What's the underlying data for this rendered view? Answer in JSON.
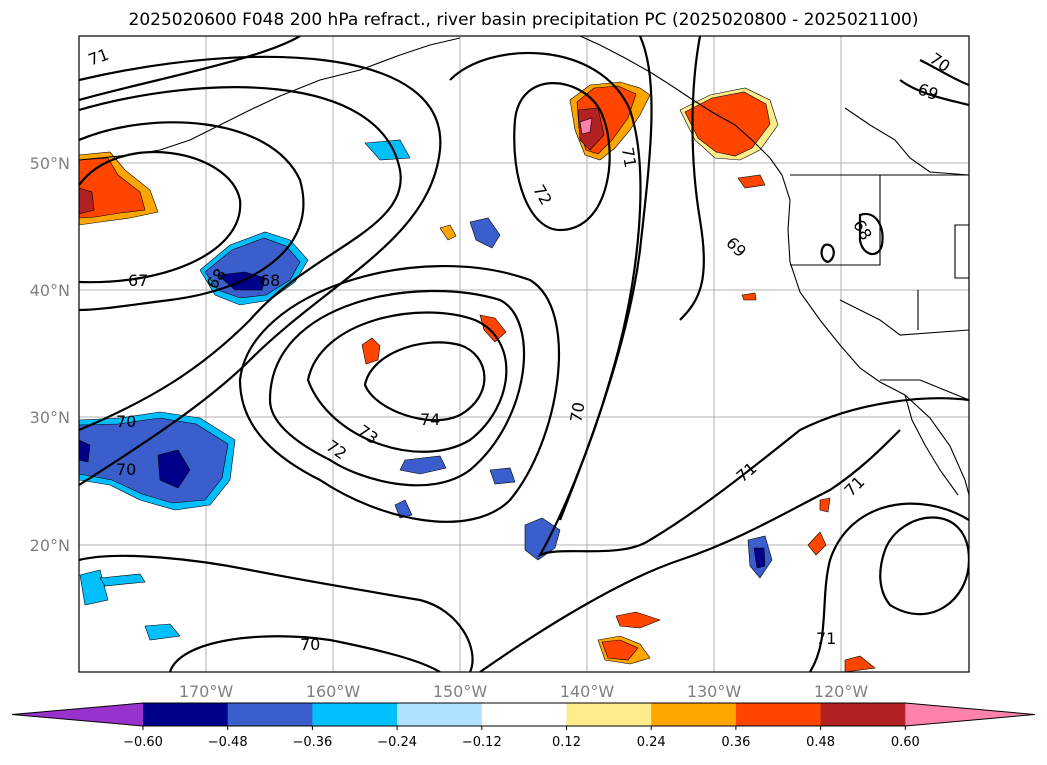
{
  "title": "2025020600 F048 200 hPa refract., river basin precipitation PC (2025020800 - 2025021100)",
  "map": {
    "lat_labels": [
      "50°N",
      "40°N",
      "30°N",
      "20°N"
    ],
    "lon_labels": [
      "170°W",
      "160°W",
      "150°W",
      "140°W",
      "130°W",
      "120°W"
    ],
    "contour_labels": [
      "71",
      "70",
      "69",
      "68",
      "67",
      "68",
      "68",
      "72",
      "71",
      "69",
      "74",
      "73",
      "72",
      "70",
      "70",
      "70",
      "70",
      "71",
      "71",
      "71"
    ]
  },
  "colorbar": {
    "colors": [
      "#9932cc",
      "#00008b",
      "#3a5fcd",
      "#00bfff",
      "#b0e2ff",
      "#ffffff",
      "#ffec8b",
      "#ffa500",
      "#ff4500",
      "#b22222",
      "#ff82ab"
    ],
    "tick_labels": [
      "−0.60",
      "−0.48",
      "−0.36",
      "−0.24",
      "−0.12",
      "0.12",
      "0.24",
      "0.36",
      "0.48",
      "0.60"
    ]
  }
}
